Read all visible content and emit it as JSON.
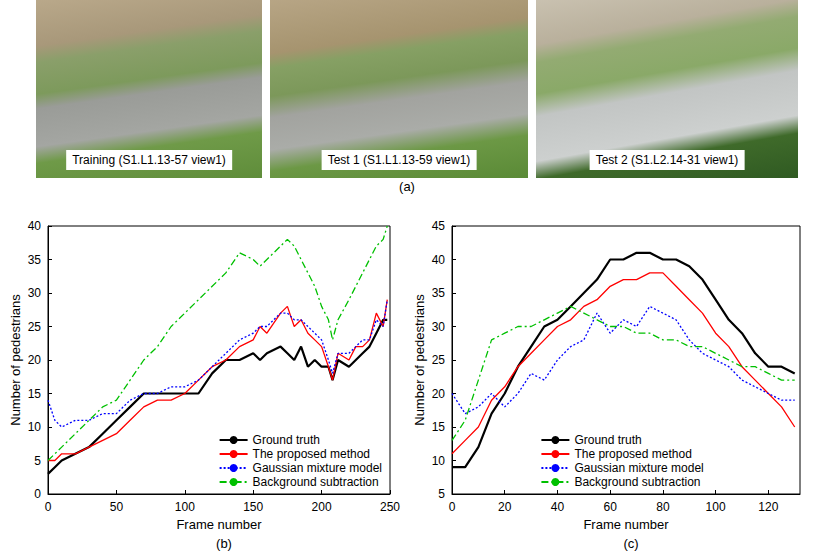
{
  "photos": {
    "label": "(a)",
    "captions": [
      "Training (S1.L1.13-57 view1)",
      "Test 1 (S1.L1.13-59 view1)",
      "Test 2 (S1.L2.14-31 view1)"
    ]
  },
  "chart_data": [
    {
      "type": "line",
      "panel_label": "(b)",
      "x_label": "Frame number",
      "y_label": "Number of pedestrians",
      "x": [
        0,
        5,
        10,
        20,
        30,
        40,
        50,
        60,
        70,
        80,
        90,
        100,
        110,
        120,
        130,
        140,
        150,
        155,
        160,
        170,
        175,
        180,
        185,
        190,
        195,
        200,
        205,
        208,
        212,
        220,
        225,
        230,
        235,
        240,
        245,
        248
      ],
      "series": [
        {
          "name": "Ground truth",
          "color": "#000000",
          "line_style": "solid",
          "values": [
            3,
            4,
            5,
            6,
            7,
            9,
            11,
            13,
            15,
            15,
            15,
            15,
            15,
            18,
            20,
            20,
            21,
            20,
            21,
            22,
            21,
            20,
            22,
            19,
            20,
            19,
            19,
            17,
            20,
            19,
            20,
            21,
            22,
            24,
            26,
            26
          ]
        },
        {
          "name": "The proposed method",
          "color": "#ff0000",
          "line_style": "solid",
          "values": [
            5,
            5,
            6,
            6,
            7,
            8,
            9,
            11,
            13,
            14,
            14,
            15,
            17,
            19,
            20,
            22,
            23,
            25,
            24,
            27,
            28,
            25,
            26,
            24,
            23,
            22,
            19,
            17,
            21,
            20,
            22,
            22,
            23,
            27,
            25,
            29
          ]
        },
        {
          "name": "Gaussian mixture model",
          "color": "#0000ff",
          "line_style": "dotted",
          "values": [
            14,
            11,
            10,
            11,
            11,
            12,
            12,
            14,
            15,
            15,
            16,
            16,
            17,
            19,
            21,
            23,
            24,
            25,
            25,
            27,
            27,
            26,
            26,
            25,
            24,
            23,
            20,
            18,
            21,
            21,
            22,
            23,
            23,
            26,
            25,
            29
          ]
        },
        {
          "name": "Background subtraction",
          "color": "#00c000",
          "line_style": "dashdot",
          "values": [
            5,
            6,
            7,
            9,
            11,
            13,
            14,
            17,
            20,
            22,
            25,
            27,
            29,
            31,
            33,
            36,
            35,
            34,
            35,
            37,
            38,
            37,
            35,
            33,
            31,
            28,
            26,
            23,
            26,
            29,
            31,
            33,
            35,
            37,
            38,
            40
          ]
        }
      ],
      "xlim": [
        0,
        250
      ],
      "xticks": [
        0,
        50,
        100,
        150,
        200,
        250
      ],
      "ylim": [
        0,
        40
      ],
      "yticks": [
        0,
        5,
        10,
        15,
        20,
        25,
        30,
        35,
        40
      ],
      "grid": false,
      "legend": "lower right"
    },
    {
      "type": "line",
      "panel_label": "(c)",
      "x_label": "Frame number",
      "y_label": "Number of pedestrians",
      "x": [
        0,
        5,
        10,
        15,
        20,
        25,
        30,
        35,
        40,
        45,
        50,
        55,
        60,
        65,
        70,
        75,
        80,
        85,
        90,
        95,
        100,
        105,
        110,
        115,
        120,
        125,
        130
      ],
      "series": [
        {
          "name": "Ground truth",
          "color": "#000000",
          "line_style": "solid",
          "values": [
            9,
            9,
            12,
            17,
            20,
            24,
            27,
            30,
            31,
            33,
            35,
            37,
            40,
            40,
            41,
            41,
            40,
            40,
            39,
            37,
            34,
            31,
            29,
            26,
            24,
            24,
            23
          ]
        },
        {
          "name": "The proposed method",
          "color": "#ff0000",
          "line_style": "solid",
          "values": [
            11,
            13,
            15,
            19,
            21,
            24,
            26,
            28,
            30,
            31,
            33,
            34,
            36,
            37,
            37,
            38,
            38,
            36,
            34,
            32,
            29,
            27,
            24,
            22,
            20,
            18,
            15
          ]
        },
        {
          "name": "Gaussian mixture model",
          "color": "#0000ff",
          "line_style": "dotted",
          "values": [
            20,
            17,
            18,
            20,
            18,
            20,
            23,
            22,
            25,
            27,
            28,
            32,
            29,
            31,
            30,
            33,
            32,
            31,
            28,
            26,
            25,
            24,
            22,
            21,
            20,
            19,
            19
          ]
        },
        {
          "name": "Background subtraction",
          "color": "#00c000",
          "line_style": "dashdot",
          "values": [
            13,
            16,
            22,
            28,
            29,
            30,
            30,
            31,
            32,
            33,
            32,
            31,
            30,
            30,
            29,
            29,
            28,
            28,
            27,
            27,
            26,
            25,
            24,
            24,
            23,
            22,
            22
          ]
        }
      ],
      "xlim": [
        0,
        132
      ],
      "xticks": [
        0,
        20,
        40,
        60,
        80,
        100,
        120
      ],
      "ylim": [
        5,
        45
      ],
      "yticks": [
        5,
        10,
        15,
        20,
        25,
        30,
        35,
        40,
        45
      ],
      "grid": false,
      "legend": "lower center"
    }
  ]
}
